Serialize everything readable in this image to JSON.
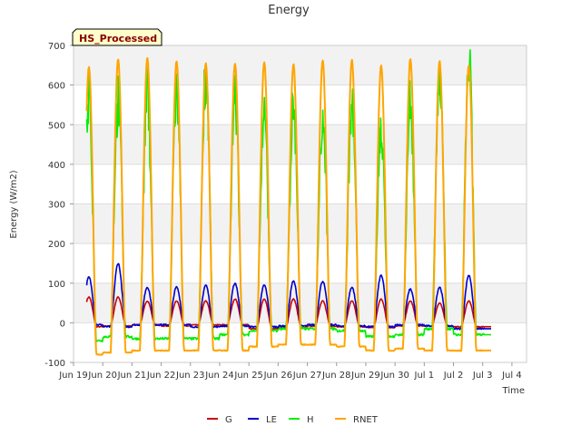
{
  "chart_data": {
    "type": "line",
    "title": "Energy",
    "xlabel": "Time",
    "ylabel": "Energy (W/m2)",
    "ylim": [
      -100,
      700
    ],
    "yticks": [
      -100,
      0,
      100,
      200,
      300,
      400,
      500,
      600,
      700
    ],
    "xlim": [
      0,
      15.5
    ],
    "xticks": [
      {
        "x": 0,
        "label": "Jun 19"
      },
      {
        "x": 1,
        "label": "Jun 20"
      },
      {
        "x": 2,
        "label": "Jun 21"
      },
      {
        "x": 3,
        "label": "Jun 22"
      },
      {
        "x": 4,
        "label": "Jun 23"
      },
      {
        "x": 5,
        "label": "Jun 24"
      },
      {
        "x": 6,
        "label": "Jun 25"
      },
      {
        "x": 7,
        "label": "Jun 26"
      },
      {
        "x": 8,
        "label": "Jun 27"
      },
      {
        "x": 9,
        "label": "Jun 28"
      },
      {
        "x": 10,
        "label": "Jun 29"
      },
      {
        "x": 11,
        "label": "Jun 30"
      },
      {
        "x": 12,
        "label": "Jul 1"
      },
      {
        "x": 13,
        "label": "Jul 2"
      },
      {
        "x": 14,
        "label": "Jul 3"
      },
      {
        "x": 15,
        "label": "Jul 4"
      }
    ],
    "grid": true,
    "legend_position": "bottom",
    "badge": "HS_Processed",
    "days": [
      "Jun 19",
      "Jun 20",
      "Jun 21",
      "Jun 22",
      "Jun 23",
      "Jun 24",
      "Jun 25",
      "Jun 26",
      "Jun 27",
      "Jun 28",
      "Jun 29",
      "Jun 30",
      "Jul 1",
      "Jul 2"
    ],
    "series": [
      {
        "name": "G",
        "color": "#cc0000",
        "night": [
          -10,
          -8,
          -5,
          -8,
          -5,
          -5,
          -15,
          -12,
          -8,
          -10,
          -12,
          -8,
          -8,
          -10
        ],
        "peak": [
          65,
          65,
          55,
          55,
          55,
          60,
          60,
          60,
          55,
          55,
          60,
          55,
          50,
          55
        ]
      },
      {
        "name": "LE",
        "color": "#0000cc",
        "night": [
          -5,
          -10,
          -5,
          -5,
          -10,
          -8,
          -10,
          -8,
          -5,
          -8,
          -10,
          -5,
          -8,
          -15
        ],
        "peak": [
          115,
          150,
          90,
          90,
          95,
          100,
          95,
          105,
          105,
          90,
          120,
          85,
          90,
          120
        ]
      },
      {
        "name": "H",
        "color": "#00ee00",
        "night": [
          -45,
          -35,
          -40,
          -40,
          -40,
          -30,
          -20,
          -15,
          -15,
          -20,
          -35,
          -30,
          -15,
          -30
        ],
        "peak": [
          570,
          575,
          600,
          600,
          655,
          580,
          530,
          550,
          540,
          555,
          500,
          560,
          640,
          680
        ]
      },
      {
        "name": "RNET",
        "color": "#ffa500",
        "night": [
          -80,
          -75,
          -70,
          -70,
          -70,
          -70,
          -60,
          -55,
          -55,
          -60,
          -70,
          -65,
          -70,
          -70
        ],
        "peak": [
          645,
          665,
          668,
          660,
          655,
          655,
          658,
          652,
          662,
          664,
          650,
          665,
          660,
          650
        ]
      }
    ]
  }
}
